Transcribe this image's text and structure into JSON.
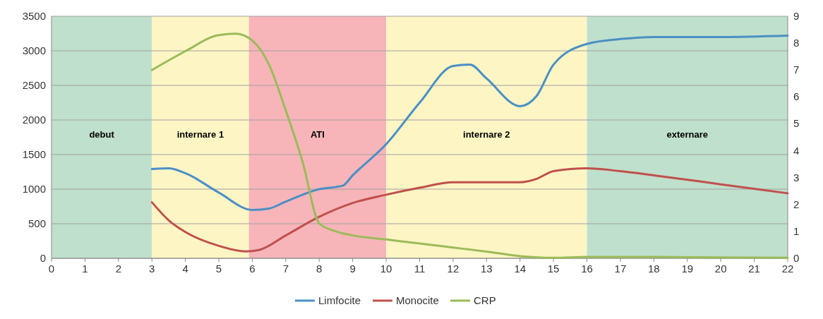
{
  "chart_data": {
    "type": "line",
    "x": [
      3,
      3.5,
      4,
      5,
      6,
      6.5,
      7,
      8,
      8.7,
      9,
      10,
      11,
      12,
      12.5,
      13,
      14,
      14.5,
      15,
      16,
      17,
      18,
      20,
      22
    ],
    "series": [
      {
        "name": "Limfocite",
        "color": "#4a8fc6",
        "values": [
          1290,
          1300,
          1230,
          950,
          700,
          720,
          820,
          1000,
          1050,
          1200,
          1650,
          2250,
          2780,
          2800,
          2600,
          2200,
          2350,
          2800,
          3100,
          3170,
          3200,
          3200,
          3220
        ]
      },
      {
        "name": "Monocite",
        "color": "#c0504d",
        "x": [
          3,
          3.5,
          4,
          5,
          5.8,
          6.2,
          7,
          8,
          9,
          10,
          11,
          12,
          13,
          14,
          14.5,
          15,
          16,
          17,
          18,
          20,
          22
        ],
        "values": [
          810,
          550,
          380,
          180,
          100,
          120,
          330,
          600,
          800,
          920,
          1020,
          1100,
          1100,
          1100,
          1150,
          1260,
          1300,
          1260,
          1200,
          1070,
          940
        ]
      },
      {
        "name": "CRP",
        "color": "#9bbb59",
        "axis": "y2",
        "x": [
          3,
          4,
          5,
          5.5,
          6,
          6.5,
          7,
          7.5,
          8,
          8.5,
          9,
          10,
          11,
          12,
          13,
          14,
          15,
          16,
          18,
          20,
          22
        ],
        "values": [
          7.0,
          7.7,
          8.3,
          8.35,
          8.1,
          7.2,
          5.5,
          3.6,
          1.3,
          1.0,
          0.85,
          0.7,
          0.55,
          0.4,
          0.25,
          0.08,
          0.02,
          0.05,
          0.05,
          0.03,
          0.02
        ]
      }
    ],
    "xlim": [
      0,
      22
    ],
    "xticks": [
      0,
      1,
      2,
      3,
      4,
      5,
      6,
      7,
      8,
      9,
      10,
      11,
      12,
      13,
      14,
      15,
      16,
      17,
      18,
      19,
      20,
      21,
      22
    ],
    "ylim": [
      0,
      3500
    ],
    "yticks": [
      0,
      500,
      1000,
      1500,
      2000,
      2500,
      3000,
      3500
    ],
    "y2lim": [
      0,
      9
    ],
    "y2ticks": [
      0,
      1,
      2,
      3,
      4,
      5,
      6,
      7,
      8,
      9
    ],
    "bands": [
      {
        "axis": "x",
        "from": 0,
        "to": 3,
        "label": "debut",
        "color": "#bfe0cc"
      },
      {
        "axis": "x",
        "from": 3,
        "to": 5.9,
        "label": "internare 1",
        "color": "#fdf5c4"
      },
      {
        "axis": "x",
        "from": 5.9,
        "to": 10,
        "label": "ATI",
        "color": "#f7b5b9"
      },
      {
        "axis": "x",
        "from": 10,
        "to": 16,
        "label": "internare 2",
        "color": "#fdf5c4"
      },
      {
        "axis": "x",
        "from": 16,
        "to": 22,
        "label": "externare",
        "color": "#bfe0cc"
      }
    ],
    "grid": "y",
    "legend": "bottom",
    "marker": "none",
    "line_style": "solid"
  }
}
